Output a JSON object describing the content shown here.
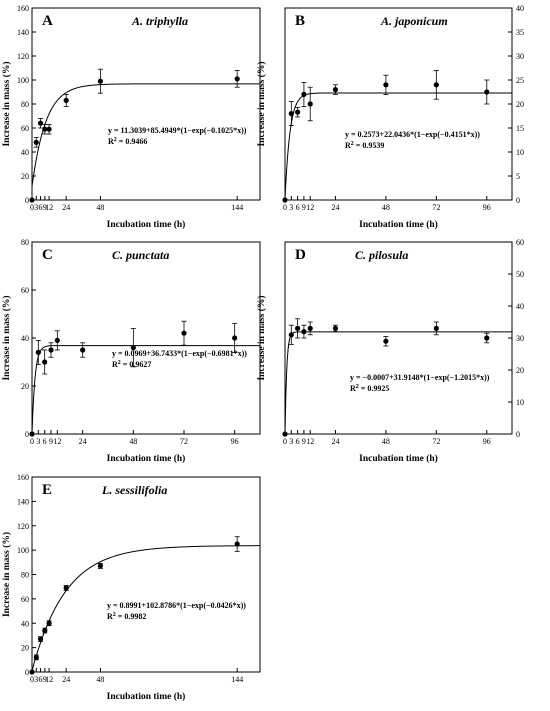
{
  "chart_data": [
    {
      "type": "scatter",
      "letter": "A",
      "species": "A. triphylla",
      "xlabel": "Incubation time (h)",
      "ylabel": "Increase in mass (%)",
      "xlim": [
        0,
        160
      ],
      "ylim": [
        0,
        160
      ],
      "x_ticks": [
        0,
        3,
        6,
        9,
        12,
        24,
        48,
        144
      ],
      "x_tick_labels": [
        "0",
        "3",
        "6",
        "9",
        "12",
        "24",
        "48",
        "144"
      ],
      "y_ticks": [
        0,
        20,
        40,
        60,
        80,
        100,
        120,
        140,
        160
      ],
      "y_axis_side": "left",
      "x": [
        0,
        3,
        6,
        9,
        12,
        24,
        48,
        144
      ],
      "y": [
        0,
        48,
        64,
        59,
        59,
        83,
        99,
        101
      ],
      "err": [
        0,
        4,
        4,
        4,
        4,
        5,
        10,
        7
      ],
      "fit": {
        "a": 11.3039,
        "b": 85.4949,
        "k": 0.1025
      },
      "equation": "y = 11.3039+85.4949*(1−exp(−0.1025*x))",
      "r2_prefix": "R",
      "r2_value": " = 0.9466"
    },
    {
      "type": "scatter",
      "letter": "B",
      "species": "A. japonicum",
      "xlabel": "Incubation time (h)",
      "ylabel": "Increase in mass (%)",
      "xlim": [
        0,
        108
      ],
      "ylim": [
        0,
        40
      ],
      "x_ticks": [
        0,
        3,
        6,
        9,
        12,
        24,
        48,
        72,
        96
      ],
      "x_tick_labels": [
        "0",
        "3",
        "6",
        "9",
        "12",
        "24",
        "48",
        "72",
        "96"
      ],
      "y_ticks": [
        0,
        5,
        10,
        15,
        20,
        25,
        30,
        35,
        40
      ],
      "y_axis_side": "right",
      "x": [
        0,
        3,
        6,
        9,
        12,
        24,
        48,
        72,
        96
      ],
      "y": [
        0,
        18,
        18.3,
        22,
        20,
        23,
        24,
        24,
        22.5
      ],
      "err": [
        0,
        2.5,
        1,
        2.5,
        3.5,
        1,
        2,
        3,
        2.5
      ],
      "fit": {
        "a": 0.2573,
        "b": 22.0436,
        "k": 0.4151
      },
      "equation": "y = 0.2573+22.0436*(1−exp(−0.4151*x))",
      "r2_prefix": "R",
      "r2_value": " = 0.9539"
    },
    {
      "type": "scatter",
      "letter": "C",
      "species": "C. punctata",
      "xlabel": "Incubation time (h)",
      "ylabel": "Increase in mass (%)",
      "xlim": [
        0,
        108
      ],
      "ylim": [
        0,
        80
      ],
      "x_ticks": [
        0,
        3,
        6,
        9,
        12,
        24,
        48,
        72,
        96
      ],
      "x_tick_labels": [
        "0",
        "3",
        "6",
        "9",
        "12",
        "24",
        "48",
        "72",
        "96"
      ],
      "y_ticks": [
        0,
        20,
        40,
        60,
        80
      ],
      "y_axis_side": "left",
      "x": [
        0,
        3,
        6,
        9,
        12,
        24,
        48,
        72,
        96
      ],
      "y": [
        0,
        34,
        30,
        35,
        39,
        35,
        36,
        42,
        40
      ],
      "err": [
        0,
        5,
        5,
        3,
        4,
        3,
        8,
        5,
        6
      ],
      "fit": {
        "a": 0.0969,
        "b": 36.7433,
        "k": 0.6981
      },
      "equation": "y = 0.0969+36.7433*(1−exp(−0.6981*x))",
      "r2_prefix": "R",
      "r2_value": " = 0.9627"
    },
    {
      "type": "scatter",
      "letter": "D",
      "species": "C. pilosula",
      "xlabel": "Incubation time (h)",
      "ylabel": "Increase in mass (%)",
      "xlim": [
        0,
        108
      ],
      "ylim": [
        0,
        60
      ],
      "x_ticks": [
        0,
        3,
        6,
        9,
        12,
        24,
        48,
        72,
        96
      ],
      "x_tick_labels": [
        "0",
        "3",
        "6",
        "9",
        "12",
        "24",
        "48",
        "72",
        "96"
      ],
      "y_ticks": [
        0,
        10,
        20,
        30,
        40,
        50,
        60
      ],
      "y_axis_side": "right",
      "x": [
        0,
        3,
        6,
        9,
        12,
        24,
        48,
        72,
        96
      ],
      "y": [
        0,
        31,
        33,
        32,
        33,
        33,
        29,
        33,
        30
      ],
      "err": [
        0,
        3,
        3,
        2,
        2,
        1,
        1.5,
        2,
        1.5
      ],
      "fit": {
        "a": -0.0007,
        "b": 31.9148,
        "k": 1.2015
      },
      "equation": "y = −0.0007+31.9148*(1−exp(−1.2015*x))",
      "r2_prefix": "R",
      "r2_value": " = 0.9925"
    },
    {
      "type": "scatter",
      "letter": "E",
      "species": "L. sessilifolia",
      "xlabel": "Incubation time (h)",
      "ylabel": "Increase in mass (%)",
      "xlim": [
        0,
        160
      ],
      "ylim": [
        0,
        160
      ],
      "x_ticks": [
        0,
        3,
        6,
        9,
        12,
        24,
        48,
        144
      ],
      "x_tick_labels": [
        "0",
        "3",
        "6",
        "9",
        "12",
        "24",
        "48",
        "144"
      ],
      "y_ticks": [
        0,
        20,
        40,
        60,
        80,
        100,
        120,
        140,
        160
      ],
      "y_axis_side": "left",
      "x": [
        0,
        3,
        6,
        9,
        12,
        24,
        48,
        144
      ],
      "y": [
        0,
        12,
        27,
        34,
        40,
        69,
        87,
        105
      ],
      "err": [
        0,
        2,
        2,
        2,
        2,
        2,
        2,
        6
      ],
      "fit": {
        "a": 0.8991,
        "b": 102.8786,
        "k": 0.0426
      },
      "equation": "y = 0.8991+102.8786*(1−exp(−0.0426*x))",
      "r2_prefix": "R",
      "r2_value": " = 0.9982"
    }
  ]
}
